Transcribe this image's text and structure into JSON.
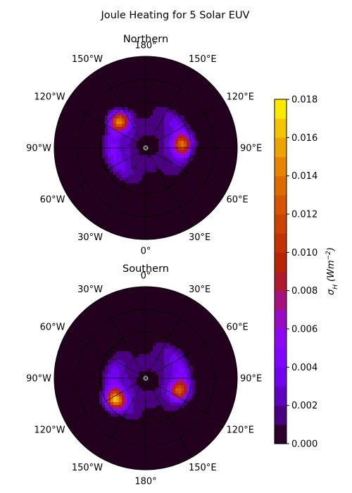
{
  "chart_data": {
    "type": "heatmap",
    "title": "Joule Heating for 5 Solar EUV",
    "panels": [
      {
        "name": "Northern",
        "lon_labels": [
          {
            "deg": 0,
            "text": "0°"
          },
          {
            "deg": 30,
            "text": "30°E"
          },
          {
            "deg": 60,
            "text": "60°E"
          },
          {
            "deg": 90,
            "text": "90°E"
          },
          {
            "deg": 120,
            "text": "120°E"
          },
          {
            "deg": 150,
            "text": "150°E"
          },
          {
            "deg": 180,
            "text": "180°"
          },
          {
            "deg": 210,
            "text": "150°W"
          },
          {
            "deg": 240,
            "text": "120°W"
          },
          {
            "deg": 270,
            "text": "90°W"
          },
          {
            "deg": 300,
            "text": "60°W"
          },
          {
            "deg": 330,
            "text": "30°W"
          }
        ],
        "orientation": "north-down",
        "hotspots": [
          {
            "lon": 225,
            "colat": 0.62,
            "value": 0.013
          },
          {
            "lon": 95,
            "colat": 0.6,
            "value": 0.0095
          }
        ]
      },
      {
        "name": "Southern",
        "lon_labels": [
          {
            "deg": 0,
            "text": "0°"
          },
          {
            "deg": 30,
            "text": "30°E"
          },
          {
            "deg": 60,
            "text": "60°E"
          },
          {
            "deg": 90,
            "text": "90°E"
          },
          {
            "deg": 120,
            "text": "120°E"
          },
          {
            "deg": 150,
            "text": "150°E"
          },
          {
            "deg": 180,
            "text": "180°"
          },
          {
            "deg": 210,
            "text": "150°W"
          },
          {
            "deg": 240,
            "text": "120°W"
          },
          {
            "deg": 270,
            "text": "90°W"
          },
          {
            "deg": 300,
            "text": "60°W"
          },
          {
            "deg": 330,
            "text": "30°W"
          }
        ],
        "orientation": "south-up",
        "hotspots": [
          {
            "lon": 235,
            "colat": 0.62,
            "value": 0.0135
          },
          {
            "lon": 110,
            "colat": 0.58,
            "value": 0.0095
          }
        ]
      }
    ],
    "colorbar": {
      "label": "σH (Wm−2)",
      "label_main": "σ",
      "label_sub": "H",
      "label_units": "(Wm",
      "label_exp": "−2",
      "label_close": ")",
      "min": 0,
      "max": 0.018,
      "step": 0.001,
      "ticks": [
        "0.000",
        "0.002",
        "0.004",
        "0.006",
        "0.008",
        "0.010",
        "0.012",
        "0.014",
        "0.016",
        "0.018"
      ],
      "colormap": "gnuplot"
    },
    "colors": {
      "background": "#23001e",
      "grid": "#000000"
    }
  }
}
